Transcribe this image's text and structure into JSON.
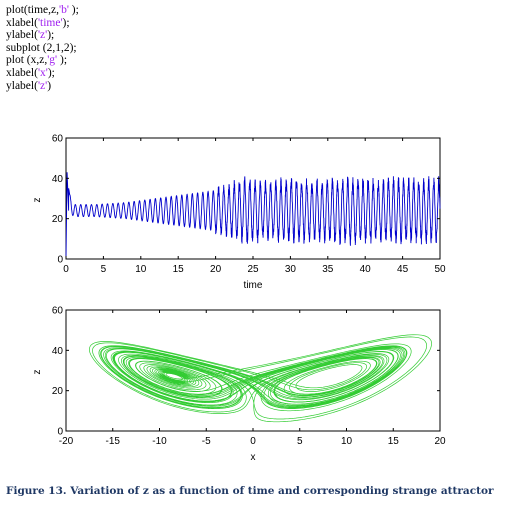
{
  "code_lines": [
    {
      "pre": "plot(time,z,",
      "str": "'b'",
      "post": " );"
    },
    {
      "pre": "xlabel(",
      "str": "'time'",
      "post": ");"
    },
    {
      "pre": "ylabel(",
      "str": "'z'",
      "post": ");"
    },
    {
      "pre": "subplot (2,1,2);",
      "str": "",
      "post": ""
    },
    {
      "pre": "plot (x,z,",
      "str": "'g'",
      "post": " );"
    },
    {
      "pre": "xlabel(",
      "str": "'x'",
      "post": ");"
    },
    {
      "pre": "ylabel(",
      "str": "'z'",
      "post": ")"
    }
  ],
  "caption": "Figure 13. Variation of z as a function of time and corresponding strange attractor",
  "chart_data": [
    {
      "type": "line",
      "color": "#0000cc",
      "xlabel": "time",
      "ylabel": "z",
      "xlim": [
        0,
        50
      ],
      "ylim": [
        0,
        60
      ],
      "xticks": [
        0,
        5,
        10,
        15,
        20,
        25,
        30,
        35,
        40,
        45,
        50
      ],
      "yticks": [
        0,
        20,
        40,
        60
      ],
      "series": [
        {
          "description_of_shape": "oscillation",
          "x": [
            0,
            0.2,
            0.5,
            1,
            2,
            4,
            6,
            8,
            10,
            12,
            14,
            16,
            18,
            20,
            22,
            23,
            24,
            26,
            28,
            30,
            32,
            34,
            36,
            38,
            40,
            42,
            44,
            46,
            48,
            50
          ],
          "z_mean": [
            0,
            43,
            28,
            24,
            24,
            24,
            24,
            24,
            24,
            24,
            24,
            24,
            24,
            24,
            24,
            24,
            24,
            24,
            24,
            24,
            24,
            24,
            24,
            24,
            24,
            24,
            24,
            24,
            24,
            24
          ],
          "z_amp": [
            0,
            0,
            4,
            3,
            3,
            3,
            3.5,
            4,
            5,
            6,
            7,
            8,
            9,
            10,
            11,
            13,
            14,
            13,
            13,
            14,
            14,
            13,
            14,
            14,
            14,
            13,
            14,
            14,
            14,
            14
          ]
        }
      ]
    },
    {
      "type": "line",
      "color": "#33cc33",
      "xlabel": "x",
      "ylabel": "z",
      "xlim": [
        -20,
        20
      ],
      "ylim": [
        0,
        60
      ],
      "xticks": [
        -20,
        -15,
        -10,
        -5,
        0,
        5,
        10,
        15,
        20
      ],
      "yticks": [
        0,
        20,
        40,
        60
      ],
      "series": [
        {
          "left_wing": {
            "center": [
              -8,
              25
            ],
            "outer_x": [
              -16,
              -1
            ],
            "outer_z": [
              8,
              38
            ]
          },
          "right_wing": {
            "center": [
              8,
              27
            ],
            "outer_x": [
              1,
              18
            ],
            "outer_z": [
              11,
              41
            ]
          },
          "extremes": {
            "x": [
              -17,
              19
            ],
            "z": [
              3,
              43
            ]
          }
        }
      ]
    }
  ]
}
